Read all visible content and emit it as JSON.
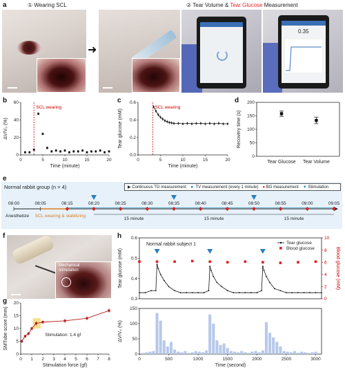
{
  "panel_a": {
    "label": "a",
    "step1": "① Wearing SCL",
    "step2_prefix": "② Tear Volume & ",
    "step2_highlight": "Tear Glucose",
    "step2_suffix": " Measurement",
    "phone_reading": "0.35",
    "highlight_color": "#e8262b"
  },
  "panel_b": {
    "label": "b",
    "annotation": "SCL wearing",
    "chart_data": {
      "type": "scatter",
      "xlabel": "Time (minute)",
      "ylabel": "ΔV/V₀ (%)",
      "xlim": [
        0,
        20
      ],
      "ylim": [
        0,
        60
      ],
      "xticks": [
        0,
        5,
        10,
        15,
        20
      ],
      "yticks": [
        0,
        20,
        40,
        60
      ],
      "event_x": 3,
      "x": [
        1,
        2,
        3,
        4,
        5,
        6,
        7,
        8,
        9,
        10,
        11,
        12,
        13,
        14,
        15,
        16,
        17,
        18,
        19,
        20
      ],
      "y": [
        3,
        3,
        6,
        47,
        24,
        8,
        4,
        5,
        4,
        5,
        3,
        4,
        4,
        5,
        3,
        4,
        4,
        5,
        3,
        4
      ]
    }
  },
  "panel_c": {
    "label": "c",
    "annotation": "SCL wearing",
    "chart_data": {
      "type": "line",
      "xlabel": "Time (minute)",
      "ylabel": "Tear glucose (mM)",
      "xlim": [
        0,
        20
      ],
      "ylim": [
        0.0,
        0.6
      ],
      "xticks": [
        0,
        5,
        10,
        15,
        20
      ],
      "yticks": [
        0.0,
        0.2,
        0.4,
        0.6
      ],
      "event_x": 3.3,
      "x": [
        3.5,
        4,
        4.5,
        5,
        5.5,
        6,
        6.5,
        7,
        7.5,
        8,
        9,
        10,
        11,
        12,
        13,
        14,
        15,
        16,
        17,
        18,
        19,
        20
      ],
      "y": [
        0.55,
        0.5,
        0.46,
        0.43,
        0.41,
        0.39,
        0.38,
        0.37,
        0.365,
        0.36,
        0.36,
        0.355,
        0.36,
        0.355,
        0.36,
        0.36,
        0.355,
        0.36,
        0.355,
        0.36,
        0.355,
        0.355
      ]
    }
  },
  "panel_d": {
    "label": "d",
    "chart_data": {
      "type": "scatter",
      "ylabel": "Recovery time (s)",
      "ylim": [
        0,
        200
      ],
      "yticks": [
        0,
        50,
        100,
        150,
        200
      ],
      "categories": [
        "Tear Glucose",
        "Tear Volume"
      ],
      "values": [
        158,
        133
      ],
      "errors": [
        10,
        12
      ]
    }
  },
  "panel_e": {
    "label": "e",
    "group": "Normal rabbit group (n = 4)",
    "legend": [
      "Continuous TG measurement",
      "TV measurement (every 1 minute)",
      "BG measurement",
      "Stimulation"
    ],
    "times": [
      "08:00",
      "08:05",
      "08:15",
      "08:20",
      "08:25",
      "08:30",
      "08:35",
      "08:40",
      "08:45",
      "08:50",
      "08:55",
      "09:00",
      "09:05"
    ],
    "anesthetize": "Anesthetize",
    "scl_label": "SCL wearing & stabilizing",
    "interval_label": "15 minute",
    "colors": {
      "tg": "#1f1f1f",
      "tv": "#2a8fbf",
      "bg": "#e02020",
      "stim": "#2a7fbf",
      "scl": "#e07b20"
    }
  },
  "panel_f": {
    "label": "f",
    "inset_caption": "Mechanical stimulation"
  },
  "panel_g": {
    "label": "g",
    "annotation": "Stimulation: 1.4 gf",
    "chart_data": {
      "type": "line",
      "xlabel": "Stimulation force (gf)",
      "ylabel": "SMTube score (mm)",
      "xlim": [
        0,
        8
      ],
      "ylim": [
        0,
        20
      ],
      "xticks": [
        0,
        1,
        2,
        3,
        4,
        5,
        6,
        7,
        8
      ],
      "yticks": [
        0,
        5,
        10,
        15,
        20
      ],
      "x": [
        0.1,
        0.4,
        0.7,
        1.0,
        1.4,
        2.0,
        4.0,
        6.0,
        8.0
      ],
      "y": [
        5,
        7,
        8,
        10,
        12,
        12.5,
        13,
        14,
        17
      ],
      "errors": [
        0.6,
        0.6,
        0.7,
        0.8,
        0.9,
        0.8,
        0.9,
        0.8,
        1.0
      ]
    }
  },
  "panel_h": {
    "label": "h",
    "subject": "Normal rabbit subject 1",
    "chart_data": [
      {
        "type": "line",
        "xlabel": "",
        "ylabel": "Tear glucose (mM)",
        "y2label": "Blood glucose (mM)",
        "xlim": [
          0,
          3100
        ],
        "ylim": [
          0.3,
          0.6
        ],
        "y2lim": [
          0,
          10
        ],
        "yticks": [
          0.3,
          0.4,
          0.5,
          0.6
        ],
        "y2ticks": [
          0,
          2,
          4,
          6,
          8,
          10
        ],
        "stimulations": [
          300,
          1200,
          2100
        ],
        "series": [
          {
            "name": "Tear glucose",
            "x": [
              0,
              100,
              200,
              280,
              300,
              320,
              360,
              420,
              500,
              600,
              700,
              800,
              900,
              1000,
              1100,
              1180,
              1200,
              1220,
              1260,
              1320,
              1400,
              1500,
              1600,
              1700,
              1800,
              1900,
              2000,
              2080,
              2100,
              2120,
              2160,
              2220,
              2300,
              2400,
              2500,
              2600,
              2700,
              2800,
              2900,
              3000,
              3100
            ],
            "y": [
              0.33,
              0.33,
              0.34,
              0.34,
              0.47,
              0.45,
              0.42,
              0.39,
              0.36,
              0.34,
              0.33,
              0.33,
              0.33,
              0.33,
              0.33,
              0.34,
              0.46,
              0.44,
              0.41,
              0.38,
              0.36,
              0.34,
              0.33,
              0.33,
              0.33,
              0.33,
              0.33,
              0.34,
              0.46,
              0.44,
              0.41,
              0.38,
              0.35,
              0.34,
              0.33,
              0.33,
              0.33,
              0.33,
              0.33,
              0.33,
              0.33
            ]
          },
          {
            "name": "Blood glucose",
            "x": [
              0,
              300,
              600,
              900,
              1200,
              1500,
              1800,
              2100,
              2400,
              2700,
              3000
            ],
            "y": [
              6.1,
              6.1,
              6.1,
              6.2,
              6.1,
              6.0,
              6.1,
              6.0,
              5.9,
              6.0,
              6.1
            ]
          }
        ]
      },
      {
        "type": "bar",
        "xlabel": "Time (second)",
        "ylabel": "ΔV/V₀ (%)",
        "xlim": [
          0,
          3100
        ],
        "ylim": [
          0,
          150
        ],
        "yticks": [
          0,
          50,
          100,
          150
        ],
        "xticks": [
          0,
          500,
          1000,
          1500,
          2000,
          2500,
          3000
        ],
        "x": [
          60,
          120,
          180,
          240,
          300,
          360,
          420,
          480,
          540,
          600,
          660,
          720,
          780,
          840,
          900,
          960,
          1020,
          1080,
          1140,
          1200,
          1260,
          1320,
          1380,
          1440,
          1500,
          1560,
          1620,
          1680,
          1740,
          1800,
          1860,
          1920,
          1980,
          2040,
          2100,
          2160,
          2220,
          2280,
          2340,
          2400,
          2460,
          2520,
          2580,
          2640,
          2700,
          2760,
          2820,
          2880,
          2940,
          3000
        ],
        "values": [
          4,
          6,
          8,
          10,
          135,
          110,
          45,
          25,
          40,
          15,
          8,
          6,
          10,
          4,
          6,
          10,
          8,
          6,
          12,
          130,
          100,
          45,
          30,
          35,
          20,
          10,
          8,
          6,
          10,
          6,
          4,
          8,
          10,
          6,
          12,
          105,
          70,
          55,
          40,
          25,
          10,
          8,
          6,
          10,
          4,
          8,
          6,
          4,
          6,
          8
        ]
      }
    ]
  }
}
